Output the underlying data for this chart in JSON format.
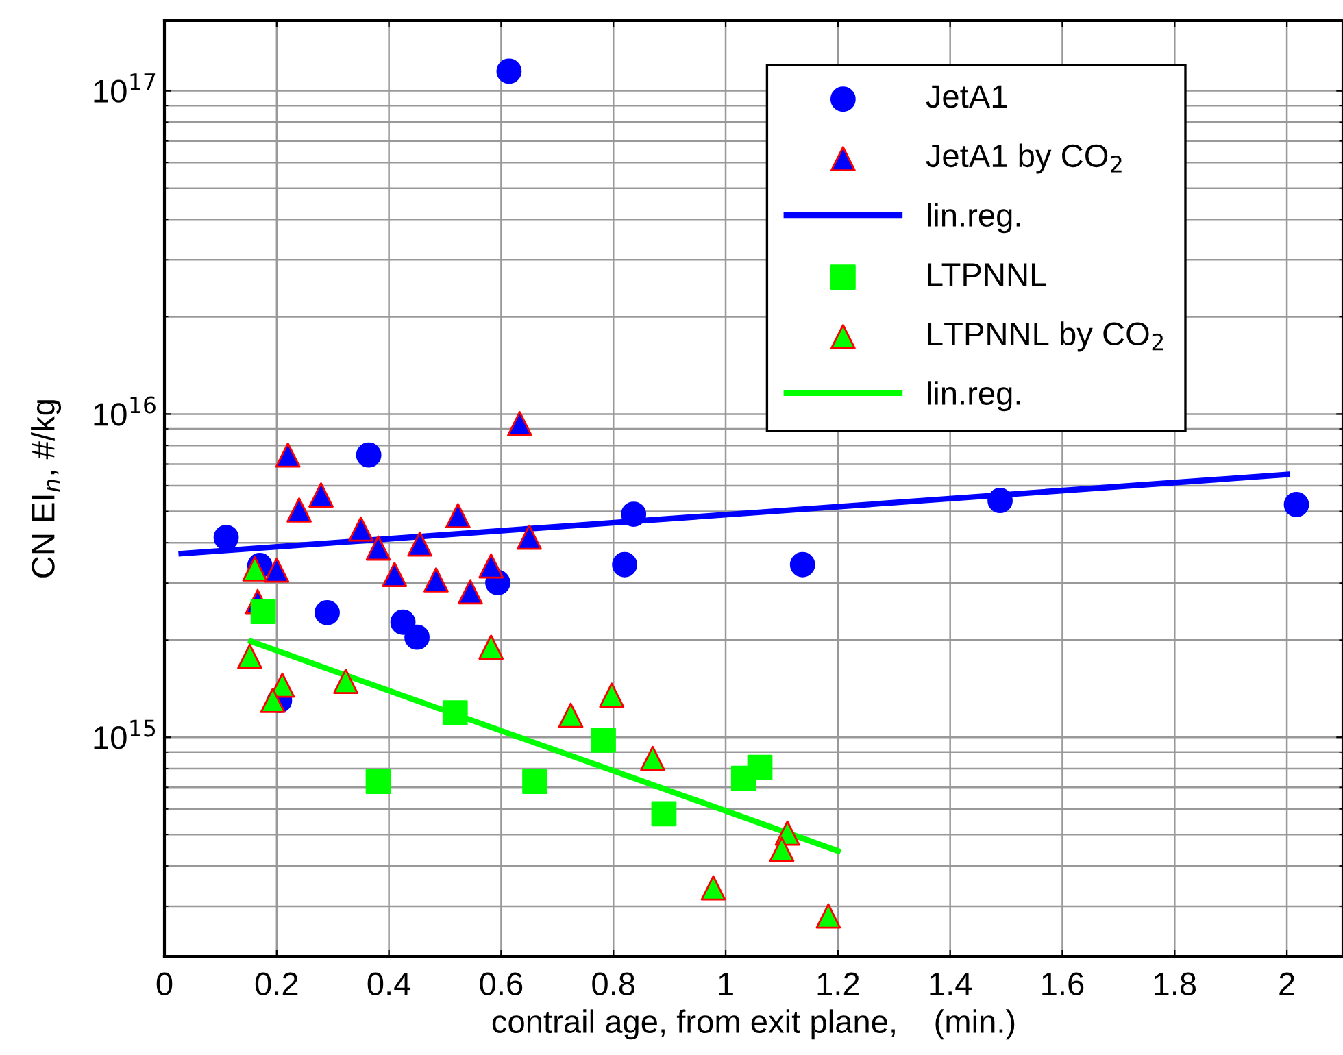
{
  "chart_data": {
    "type": "scatter",
    "xlabel": "contrail age, from exit plane,    (min.)",
    "ylabel": "CN EI$_{n}$, #/kg",
    "log": "y",
    "grid": true,
    "legend": "top right",
    "xlim": [
      0,
      2.1
    ],
    "ylim": [
      210000000000000.0,
      1.65e+17
    ],
    "xticks": [
      0,
      0.2,
      0.4,
      0.6,
      0.8,
      1,
      1.2,
      1.4,
      1.6,
      1.8,
      2
    ],
    "yticks": [
      {
        "value": 1000000000000000.0,
        "label": "10$^{15}$"
      },
      {
        "value": 1e+16,
        "label": "10$^{16}$"
      },
      {
        "value": 1e+17,
        "label": "10$^{17}$"
      }
    ],
    "series": [
      {
        "name": "JetA1",
        "marker": "circle",
        "color": "#0000ff",
        "x": [
          0.11,
          0.17,
          0.29,
          0.364,
          0.425,
          0.45,
          0.594,
          0.836,
          0.82,
          0.205,
          0.614,
          1.137,
          1.489,
          2.017
        ],
        "values": [
          4150000000000000.0,
          3400000000000000.0,
          2430000000000000.0,
          7470000000000000.0,
          2270000000000000.0,
          2040000000000000.0,
          3010000000000000.0,
          4900000000000000.0,
          3420000000000000.0,
          1300000000000000.0,
          1.15e+17,
          3420000000000000.0,
          5400000000000000.0,
          5250000000000000.0
        ]
      },
      {
        "name": "JetA1 by CO$_{2}$",
        "marker": "triangle",
        "color": "#0000ff",
        "x": [
          0.22,
          0.24,
          0.279,
          0.35,
          0.381,
          0.455,
          0.41,
          0.484,
          0.545,
          0.523,
          0.582,
          0.65,
          0.633,
          0.2,
          0.166
        ],
        "values": [
          7470000000000000.0,
          5050000000000000.0,
          5620000000000000.0,
          4410000000000000.0,
          3850000000000000.0,
          3960000000000000.0,
          3190000000000000.0,
          3070000000000000.0,
          2820000000000000.0,
          4850000000000000.0,
          3390000000000000.0,
          4160000000000000.0,
          9340000000000000.0,
          3290000000000000.0,
          2630000000000000.0
        ]
      },
      {
        "name": "lin.reg.",
        "type": "line",
        "marker": "none",
        "color": "#0000ff",
        "x": [
          0.03,
          2.0
        ],
        "values": [
          3700000000000000.0,
          6500000000000000.0
        ]
      },
      {
        "name": "LTPNNL",
        "marker": "square",
        "color": "#00ff00",
        "x": [
          0.176,
          0.381,
          0.518,
          0.66,
          0.782,
          0.89,
          1.032,
          1.061
        ],
        "values": [
          2450000000000000.0,
          730000000000000.0,
          1190000000000000.0,
          730000000000000.0,
          980000000000000.0,
          580000000000000.0,
          746000000000000.0,
          807000000000000.0
        ]
      },
      {
        "name": "LTPNNL by CO$_{2}$",
        "marker": "triangle",
        "color": "#00ff00",
        "x": [
          0.161,
          0.152,
          0.21,
          0.193,
          0.323,
          0.582,
          0.724,
          0.797,
          0.87,
          0.978,
          1.11,
          1.1,
          1.183
        ],
        "values": [
          3320000000000000.0,
          1780000000000000.0,
          1450000000000000.0,
          1300000000000000.0,
          1490000000000000.0,
          1900000000000000.0,
          1170000000000000.0,
          1350000000000000.0,
          860000000000000.0,
          342000000000000.0,
          505000000000000.0,
          450000000000000.0,
          280000000000000.0
        ]
      },
      {
        "name": "lin.reg.",
        "type": "line",
        "marker": "none",
        "color": "#00ff00",
        "x": [
          0.154,
          1.2
        ],
        "values": [
          1980000000000000.0,
          445000000000000.0
        ]
      }
    ]
  }
}
